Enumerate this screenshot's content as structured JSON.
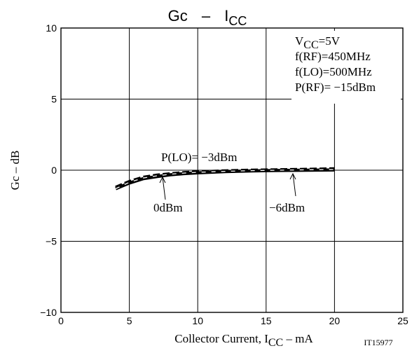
{
  "chart_data": {
    "type": "line",
    "title": {
      "main": "Gc",
      "dash": "–",
      "var": "I",
      "sub": "CC"
    },
    "xlabel": {
      "pre": "Collector Current, I",
      "sub": "CC",
      "post": " – mA"
    },
    "ylabel": "Gc – dB",
    "xlim": [
      0,
      25
    ],
    "ylim": [
      -10,
      10
    ],
    "xticks": [
      "0",
      "5",
      "10",
      "15",
      "20",
      "25"
    ],
    "yticks": [
      "10",
      "5",
      "0",
      "−5",
      "−10"
    ],
    "grid": true,
    "conditions": [
      {
        "pre": "V",
        "sub": "CC",
        "post": "=5V"
      },
      {
        "pre": "f(RF)=450MHz",
        "sub": "",
        "post": ""
      },
      {
        "pre": "f(LO)=500MHz",
        "sub": "",
        "post": ""
      },
      {
        "pre": "P(RF)= −15dBm",
        "sub": "",
        "post": ""
      }
    ],
    "series": [
      {
        "name": "P(LO)= −3dBm",
        "style": "dashed-white",
        "x": [
          4,
          5,
          6,
          7,
          8,
          9,
          10,
          12,
          14,
          16,
          18,
          20
        ],
        "y": [
          -1.3,
          -0.85,
          -0.55,
          -0.4,
          -0.28,
          -0.2,
          -0.15,
          -0.08,
          -0.03,
          0.0,
          0.03,
          0.05
        ]
      },
      {
        "name": "0dBm",
        "style": "solid",
        "x": [
          4,
          5,
          6,
          7,
          8,
          9,
          10,
          12,
          14,
          16,
          18,
          20
        ],
        "y": [
          -1.3,
          -0.9,
          -0.6,
          -0.45,
          -0.32,
          -0.24,
          -0.18,
          -0.1,
          -0.05,
          -0.02,
          0.0,
          0.02
        ]
      },
      {
        "name": "−6dBm",
        "style": "dashed",
        "x": [
          4,
          5,
          6,
          7,
          8,
          9,
          10,
          12,
          14,
          16,
          18,
          20
        ],
        "y": [
          -1.2,
          -0.8,
          -0.5,
          -0.35,
          -0.25,
          -0.17,
          -0.12,
          -0.05,
          0.0,
          0.03,
          0.06,
          0.1
        ]
      }
    ],
    "annotations": [
      {
        "text": "P(LO)= −3dBm",
        "x": 7,
        "y": 0.6
      },
      {
        "text": "0dBm",
        "x": 6.7,
        "y": -2.6,
        "arrow_to": [
          7.5,
          -0.35
        ]
      },
      {
        "text": "−6dBm",
        "x": 15.5,
        "y": -2.6,
        "arrow_to": [
          16.8,
          -0.05
        ]
      }
    ],
    "figure_code": "IT15977"
  },
  "colors": {
    "line": "#000000",
    "background": "#ffffff"
  }
}
